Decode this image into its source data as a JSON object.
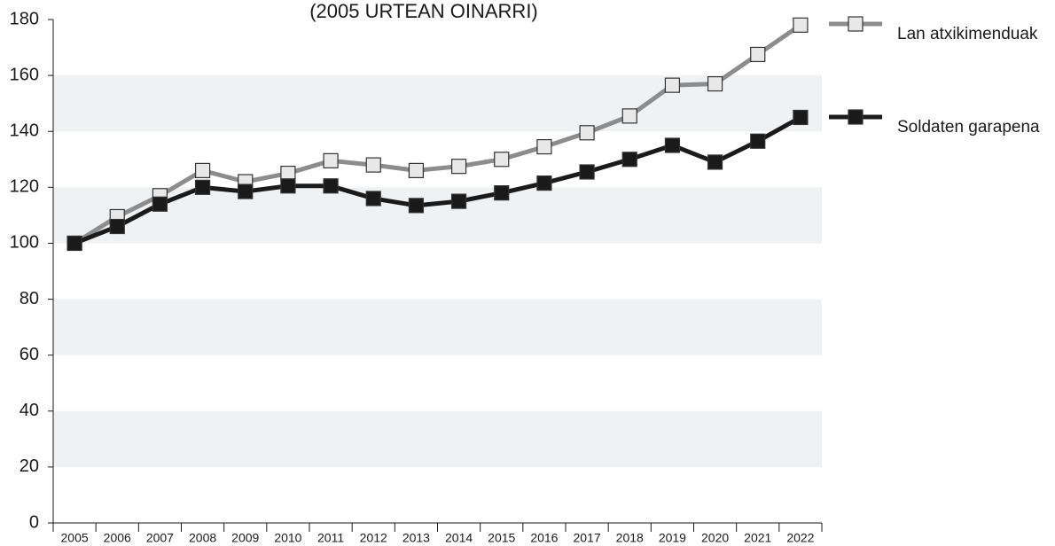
{
  "chart_data": {
    "type": "line",
    "title": "(2005 URTEAN OINARRI)",
    "categories": [
      "2005",
      "2006",
      "2007",
      "2008",
      "2009",
      "2010",
      "2011",
      "2012",
      "2013",
      "2014",
      "2015",
      "2016",
      "2017",
      "2018",
      "2019",
      "2020",
      "2021",
      "2022"
    ],
    "series": [
      {
        "name": "Lan atxikimenduak",
        "color": "#8c8c8c",
        "marker_fill": "#e8e8e8",
        "values": [
          100,
          109.5,
          117,
          126,
          122,
          125,
          129.5,
          128,
          126,
          127.5,
          130,
          134.5,
          139.5,
          145.5,
          156.5,
          157,
          167.5,
          178
        ]
      },
      {
        "name": "Soldaten garapena",
        "color": "#1a1a1a",
        "marker_fill": "#1a1a1a",
        "values": [
          100,
          106,
          114,
          120,
          118.5,
          120.5,
          120.5,
          116,
          113.5,
          115,
          118,
          121.5,
          125.5,
          130,
          135,
          129,
          136.5,
          145
        ]
      }
    ],
    "ylim": [
      0,
      180
    ],
    "yticks": [
      0,
      20,
      40,
      60,
      80,
      100,
      120,
      140,
      160,
      180
    ],
    "grid": "bands",
    "legend": "right"
  }
}
